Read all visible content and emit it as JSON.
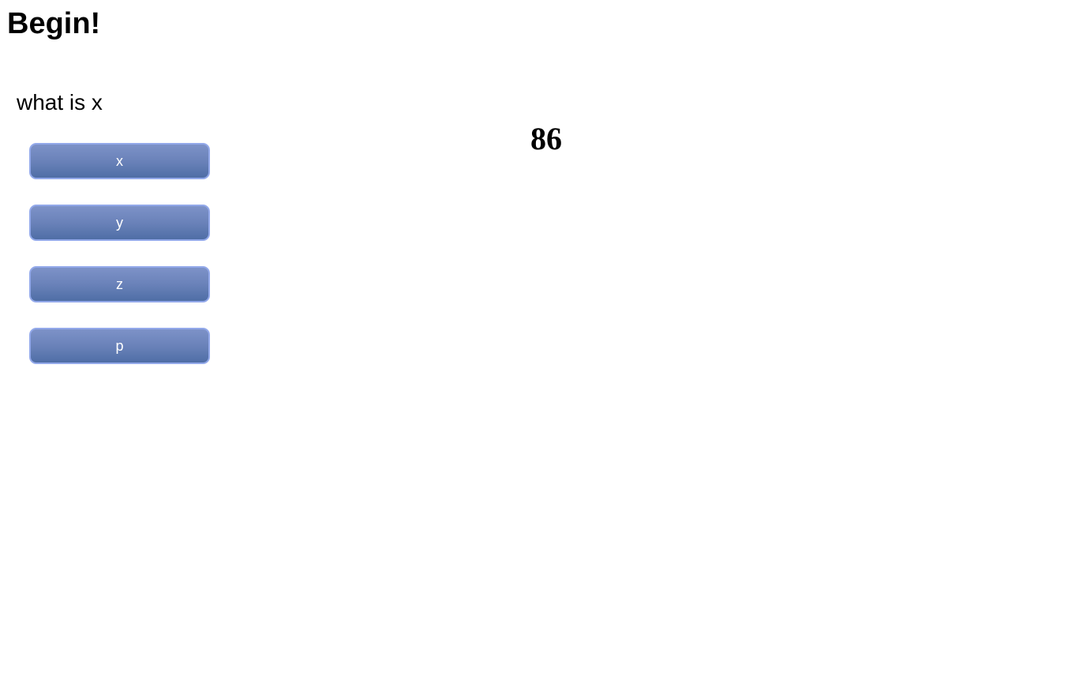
{
  "header": {
    "title": "Begin!"
  },
  "quiz": {
    "question": "what is x",
    "options": [
      {
        "label": "x"
      },
      {
        "label": "y"
      },
      {
        "label": "z"
      },
      {
        "label": "p"
      }
    ],
    "counter": "86"
  },
  "colors": {
    "button_top": "#7d92c8",
    "button_bottom": "#4f6ea6",
    "button_border": "#93a9ea",
    "button_text": "#ffffff",
    "text": "#000000",
    "background": "#ffffff"
  }
}
